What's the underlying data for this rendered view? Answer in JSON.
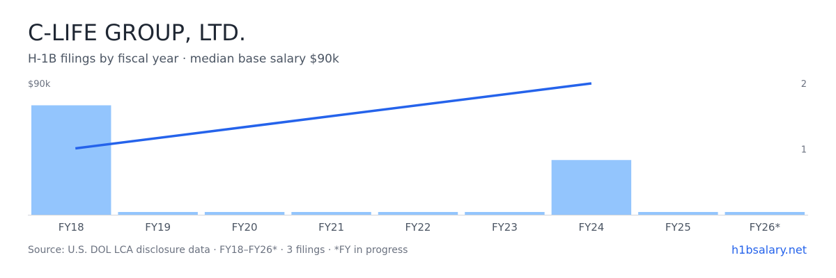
{
  "header": {
    "title": "C-LIFE GROUP, LTD.",
    "subtitle": "H-1B filings by fiscal year · median base salary $90k"
  },
  "footer": {
    "source": "Source: U.S. DOL LCA disclosure data · FY18–FY26* · 3 filings · *FY in progress",
    "brand": "h1bsalary.net"
  },
  "colors": {
    "bar": "#93c5fd",
    "line": "#2563eb",
    "baseline": "#d1d5db"
  },
  "chart_data": {
    "type": "bar",
    "categories": [
      "FY18",
      "FY19",
      "FY20",
      "FY21",
      "FY22",
      "FY23",
      "FY24",
      "FY25",
      "FY26*"
    ],
    "series": [
      {
        "type": "bar",
        "axis": "left",
        "values": [
          2,
          0,
          0,
          0,
          0,
          0,
          1,
          0,
          0
        ]
      },
      {
        "type": "line",
        "axis": "right",
        "points": [
          {
            "category": "FY18",
            "value": 1
          },
          {
            "category": "FY24",
            "value": 2
          }
        ]
      }
    ],
    "left_axis": {
      "label": "$90k"
    },
    "right_axis": {
      "ticks": [
        1,
        2
      ],
      "range": [
        0,
        2
      ]
    },
    "bar_axis_range": [
      0,
      2.4
    ]
  }
}
